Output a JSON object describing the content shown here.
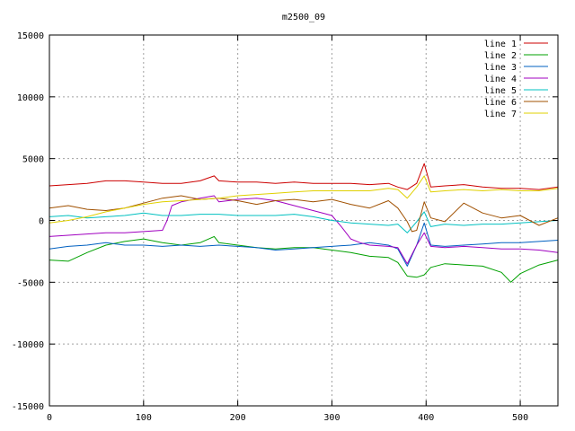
{
  "chart_data": {
    "type": "line",
    "title": "m2500_09",
    "xlabel": "",
    "ylabel": "",
    "xlim": [
      0,
      540
    ],
    "ylim": [
      -15000,
      15000
    ],
    "xticks": [
      0,
      100,
      200,
      300,
      400,
      500
    ],
    "yticks": [
      -15000,
      -10000,
      -5000,
      0,
      5000,
      10000,
      15000
    ],
    "grid": true,
    "legend_position": "top-right",
    "series": [
      {
        "name": "line 1",
        "color": "#cc0000",
        "x": [
          0,
          20,
          40,
          60,
          80,
          100,
          120,
          140,
          160,
          175,
          180,
          200,
          220,
          240,
          260,
          280,
          300,
          320,
          340,
          360,
          370,
          380,
          390,
          398,
          405,
          420,
          440,
          460,
          480,
          500,
          520,
          540
        ],
        "y": [
          2800,
          2900,
          3000,
          3200,
          3200,
          3100,
          3000,
          3000,
          3200,
          3600,
          3200,
          3100,
          3100,
          3000,
          3100,
          3000,
          3000,
          3000,
          2900,
          3000,
          2700,
          2500,
          3000,
          4600,
          2700,
          2800,
          2900,
          2700,
          2600,
          2600,
          2500,
          2700
        ]
      },
      {
        "name": "line 2",
        "color": "#00a000",
        "x": [
          0,
          20,
          40,
          60,
          80,
          100,
          120,
          140,
          160,
          175,
          180,
          200,
          220,
          240,
          260,
          280,
          300,
          320,
          340,
          360,
          370,
          380,
          390,
          398,
          405,
          420,
          440,
          460,
          480,
          490,
          500,
          520,
          540
        ],
        "y": [
          -3200,
          -3300,
          -2600,
          -2000,
          -1700,
          -1500,
          -1800,
          -2000,
          -1800,
          -1300,
          -1800,
          -2000,
          -2200,
          -2300,
          -2200,
          -2200,
          -2400,
          -2600,
          -2900,
          -3000,
          -3400,
          -4500,
          -4600,
          -4400,
          -3800,
          -3500,
          -3600,
          -3700,
          -4200,
          -5000,
          -4300,
          -3600,
          -3200
        ]
      },
      {
        "name": "line 3",
        "color": "#0060c0",
        "x": [
          0,
          20,
          40,
          60,
          80,
          100,
          120,
          140,
          160,
          180,
          200,
          220,
          240,
          260,
          280,
          300,
          320,
          340,
          360,
          370,
          380,
          390,
          398,
          405,
          420,
          440,
          460,
          480,
          500,
          520,
          540
        ],
        "y": [
          -2300,
          -2100,
          -2000,
          -1800,
          -2000,
          -2000,
          -2100,
          -2000,
          -2100,
          -2000,
          -2100,
          -2200,
          -2400,
          -2300,
          -2200,
          -2100,
          -2000,
          -1800,
          -2000,
          -2300,
          -3700,
          -2000,
          -200,
          -2000,
          -2100,
          -2000,
          -1900,
          -1800,
          -1800,
          -1700,
          -1600
        ]
      },
      {
        "name": "line 4",
        "color": "#a000c0",
        "x": [
          0,
          20,
          40,
          60,
          80,
          100,
          120,
          125,
          130,
          140,
          160,
          175,
          180,
          200,
          220,
          240,
          260,
          280,
          300,
          310,
          320,
          330,
          340,
          360,
          370,
          380,
          390,
          398,
          405,
          420,
          440,
          460,
          480,
          500,
          520,
          540
        ],
        "y": [
          -1300,
          -1200,
          -1100,
          -1000,
          -1000,
          -900,
          -800,
          0,
          1200,
          1500,
          1800,
          2000,
          1500,
          1700,
          1800,
          1600,
          1200,
          800,
          400,
          -500,
          -1500,
          -1800,
          -2000,
          -2100,
          -2200,
          -3500,
          -2000,
          -1000,
          -2100,
          -2200,
          -2100,
          -2200,
          -2300,
          -2300,
          -2400,
          -2600
        ]
      },
      {
        "name": "line 5",
        "color": "#00c0c0",
        "x": [
          0,
          20,
          40,
          60,
          80,
          100,
          120,
          140,
          160,
          180,
          200,
          220,
          240,
          260,
          280,
          300,
          320,
          340,
          360,
          370,
          380,
          390,
          398,
          405,
          420,
          440,
          460,
          480,
          500,
          520,
          540
        ],
        "y": [
          300,
          400,
          200,
          300,
          400,
          600,
          400,
          400,
          500,
          500,
          400,
          400,
          400,
          500,
          300,
          0,
          -200,
          -300,
          -400,
          -300,
          -1000,
          -100,
          700,
          -500,
          -300,
          -400,
          -300,
          -300,
          -200,
          -100,
          0
        ]
      },
      {
        "name": "line 6",
        "color": "#a05000",
        "x": [
          0,
          20,
          40,
          60,
          80,
          100,
          120,
          140,
          160,
          180,
          200,
          220,
          240,
          260,
          280,
          300,
          320,
          340,
          360,
          370,
          380,
          385,
          390,
          398,
          405,
          420,
          440,
          460,
          480,
          500,
          520,
          540
        ],
        "y": [
          1000,
          1200,
          900,
          800,
          1000,
          1400,
          1800,
          2000,
          1700,
          1800,
          1600,
          1300,
          1600,
          1700,
          1500,
          1700,
          1300,
          1000,
          1600,
          1000,
          -100,
          -900,
          -800,
          1500,
          200,
          -100,
          1400,
          600,
          200,
          400,
          -400,
          200
        ]
      },
      {
        "name": "line 7",
        "color": "#e0d000",
        "x": [
          0,
          20,
          40,
          60,
          80,
          100,
          120,
          140,
          160,
          180,
          200,
          220,
          240,
          260,
          280,
          300,
          320,
          340,
          360,
          370,
          380,
          390,
          398,
          405,
          420,
          440,
          460,
          480,
          500,
          520,
          540
        ],
        "y": [
          -200,
          0,
          300,
          700,
          1000,
          1300,
          1500,
          1600,
          1700,
          1800,
          2000,
          2100,
          2200,
          2300,
          2400,
          2400,
          2400,
          2400,
          2600,
          2500,
          1800,
          2700,
          3600,
          2300,
          2400,
          2500,
          2400,
          2500,
          2400,
          2400,
          2600
        ]
      }
    ]
  }
}
